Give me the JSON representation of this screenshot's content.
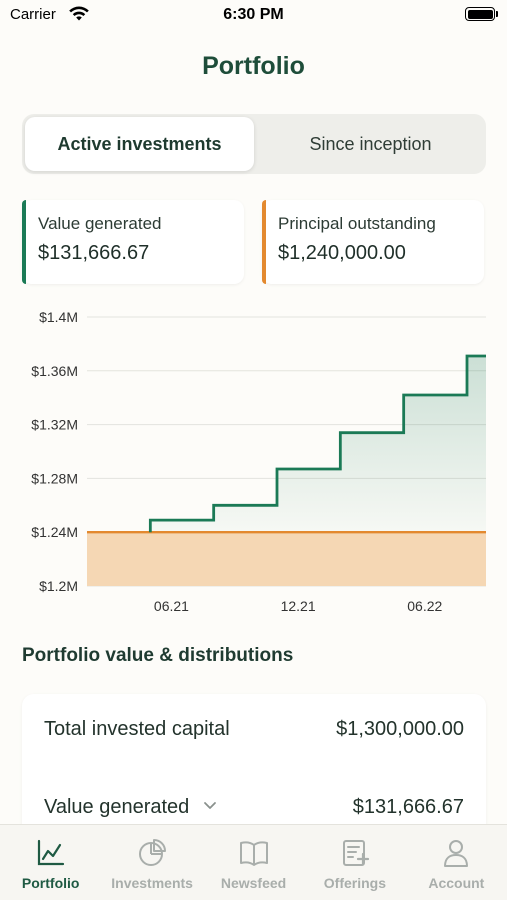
{
  "status_bar": {
    "carrier": "Carrier",
    "time": "6:30 PM"
  },
  "page_title": "Portfolio",
  "segments": [
    {
      "label": "Active investments",
      "active": true
    },
    {
      "label": "Since inception",
      "active": false
    }
  ],
  "cards": {
    "value_generated": {
      "label": "Value generated",
      "value": "$131,666.67",
      "color": "#1b7a56"
    },
    "principal_outstanding": {
      "label": "Principal outstanding",
      "value": "$1,240,000.00",
      "color": "#e3892f"
    }
  },
  "chart_data": {
    "type": "area",
    "y_tick_labels": [
      "$1.2M",
      "$1.24M",
      "$1.28M",
      "$1.32M",
      "$1.36M",
      "$1.4M"
    ],
    "y_ticks": [
      1.2,
      1.24,
      1.28,
      1.32,
      1.36,
      1.4
    ],
    "ylim": [
      1.2,
      1.4
    ],
    "x_tick_labels": [
      "06.21",
      "12.21",
      "06.22"
    ],
    "x_ticks": [
      2.0,
      8.0,
      14.0
    ],
    "xlim": [
      -2.0,
      16.9
    ],
    "grid": true,
    "series": [
      {
        "name": "Value generated",
        "color": "#1b7a56",
        "step": true,
        "x": [
          1.0,
          4.0,
          7.0,
          10.0,
          13.0,
          16.0,
          16.9
        ],
        "y": [
          1.249,
          1.26,
          1.287,
          1.314,
          1.342,
          1.371,
          1.371
        ]
      },
      {
        "name": "Principal outstanding",
        "color": "#e3892f",
        "x": [
          -2.0,
          16.9
        ],
        "y": [
          1.24,
          1.24
        ]
      }
    ]
  },
  "section_title": "Portfolio value & distributions",
  "summary": {
    "total_invested_label": "Total invested capital",
    "total_invested_value": "$1,300,000.00",
    "value_generated_label": "Value generated",
    "value_generated_value": "$131,666.67"
  },
  "tabs": [
    {
      "label": "Portfolio",
      "icon": "chart-line-icon",
      "active": true
    },
    {
      "label": "Investments",
      "icon": "pie-chart-icon",
      "active": false
    },
    {
      "label": "Newsfeed",
      "icon": "book-icon",
      "active": false
    },
    {
      "label": "Offerings",
      "icon": "document-plus-icon",
      "active": false
    },
    {
      "label": "Account",
      "icon": "person-icon",
      "active": false
    }
  ],
  "colors": {
    "accent": "#1e4d3a",
    "green": "#1b7a56",
    "orange": "#e3892f",
    "background": "#fdfcf9"
  }
}
